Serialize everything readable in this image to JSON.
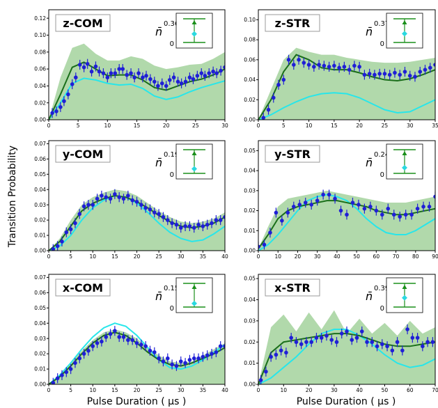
{
  "figure": {
    "ylabel": "Transition Probability",
    "xlabel": "Pulse Duration ( μs )",
    "colors": {
      "band": "#a8d5a2",
      "model": "#1a6e1a",
      "ideal": "#27e6ea",
      "points": "#1f1fd6",
      "marker_green": "#1a8f1a",
      "marker_cyan": "#2ad9e0"
    }
  },
  "chart_data": [
    {
      "type": "line",
      "title": "z-COM",
      "nbar": "0.36",
      "nbar_fraction": 0.36,
      "xlim": [
        0,
        30
      ],
      "ylim": [
        0,
        0.13
      ],
      "xticks": [
        "0",
        "5",
        "10",
        "15",
        "20",
        "25",
        "30"
      ],
      "yticks": [
        "0.00",
        "0.02",
        "0.04",
        "0.06",
        "0.08",
        "0.10",
        "0.12"
      ],
      "x": [
        0.6,
        1.3,
        2.0,
        2.6,
        3.3,
        4.0,
        4.6,
        5.3,
        6.0,
        6.6,
        7.3,
        8.0,
        8.6,
        9.3,
        10.0,
        10.6,
        11.3,
        12.0,
        12.6,
        13.3,
        14.0,
        14.6,
        15.3,
        16.0,
        16.6,
        17.3,
        18.0,
        18.6,
        19.3,
        20.0,
        20.6,
        21.3,
        22.0,
        22.6,
        23.3,
        24.0,
        24.6,
        25.3,
        26.0,
        26.6,
        27.3,
        28.0,
        28.6,
        29.3,
        30.0
      ],
      "y": [
        0.008,
        0.01,
        0.015,
        0.022,
        0.03,
        0.042,
        0.05,
        0.065,
        0.062,
        0.066,
        0.057,
        0.063,
        0.057,
        0.055,
        0.05,
        0.055,
        0.055,
        0.06,
        0.06,
        0.053,
        0.055,
        0.05,
        0.055,
        0.05,
        0.052,
        0.048,
        0.045,
        0.04,
        0.043,
        0.04,
        0.047,
        0.05,
        0.045,
        0.043,
        0.045,
        0.05,
        0.048,
        0.052,
        0.055,
        0.052,
        0.055,
        0.057,
        0.055,
        0.058,
        0.062
      ],
      "fit_x": [
        0,
        2,
        4,
        6,
        8,
        10,
        12,
        14,
        16,
        18,
        20,
        22,
        24,
        26,
        28,
        30
      ],
      "fit_y": [
        0.0,
        0.03,
        0.062,
        0.068,
        0.06,
        0.052,
        0.053,
        0.053,
        0.047,
        0.038,
        0.035,
        0.04,
        0.045,
        0.048,
        0.053,
        0.06
      ],
      "ideal_y": [
        0.0,
        0.02,
        0.043,
        0.049,
        0.047,
        0.043,
        0.041,
        0.042,
        0.037,
        0.028,
        0.024,
        0.027,
        0.033,
        0.038,
        0.042,
        0.046
      ],
      "band_y": [
        0.0,
        0.05,
        0.085,
        0.09,
        0.078,
        0.07,
        0.07,
        0.075,
        0.072,
        0.064,
        0.06,
        0.062,
        0.065,
        0.066,
        0.072,
        0.08
      ]
    },
    {
      "type": "line",
      "title": "z-STR",
      "nbar": "0.37",
      "nbar_fraction": 0.37,
      "xlim": [
        0,
        35
      ],
      "ylim": [
        0,
        0.11
      ],
      "xticks": [
        "0",
        "5",
        "10",
        "15",
        "20",
        "25",
        "30",
        "35"
      ],
      "yticks": [
        "0.00",
        "0.02",
        "0.04",
        "0.06",
        "0.08",
        "0.10"
      ],
      "x": [
        1,
        2,
        3,
        4,
        5,
        6,
        7,
        8,
        9,
        10,
        11,
        12,
        13,
        14,
        15,
        16,
        17,
        18,
        19,
        20,
        21,
        22,
        23,
        24,
        25,
        26,
        27,
        28,
        29,
        30,
        31,
        32,
        33,
        34,
        35
      ],
      "y": [
        0.002,
        0.01,
        0.022,
        0.035,
        0.04,
        0.06,
        0.055,
        0.06,
        0.057,
        0.055,
        0.053,
        0.055,
        0.054,
        0.053,
        0.054,
        0.052,
        0.053,
        0.05,
        0.054,
        0.053,
        0.045,
        0.046,
        0.045,
        0.046,
        0.046,
        0.045,
        0.047,
        0.045,
        0.048,
        0.044,
        0.043,
        0.048,
        0.05,
        0.052,
        0.055
      ],
      "fit_x": [
        0,
        2.5,
        5,
        7.5,
        10,
        12.5,
        15,
        17.5,
        20,
        22.5,
        25,
        27.5,
        30,
        32.5,
        35
      ],
      "fit_y": [
        0.0,
        0.02,
        0.048,
        0.065,
        0.06,
        0.052,
        0.05,
        0.05,
        0.047,
        0.043,
        0.04,
        0.039,
        0.041,
        0.045,
        0.05
      ],
      "ideal_y": [
        0.0,
        0.005,
        0.012,
        0.018,
        0.023,
        0.026,
        0.027,
        0.026,
        0.022,
        0.016,
        0.01,
        0.007,
        0.008,
        0.014,
        0.02
      ],
      "band_y": [
        0.0,
        0.03,
        0.06,
        0.072,
        0.068,
        0.065,
        0.065,
        0.062,
        0.06,
        0.058,
        0.057,
        0.057,
        0.058,
        0.06,
        0.062
      ]
    },
    {
      "type": "line",
      "title": "y-COM",
      "nbar": "0.19",
      "nbar_fraction": 0.19,
      "xlim": [
        0,
        40
      ],
      "ylim": [
        0,
        0.072
      ],
      "xticks": [
        "0",
        "5",
        "10",
        "15",
        "20",
        "25",
        "30",
        "35",
        "40"
      ],
      "yticks": [
        "0.00",
        "0.01",
        "0.02",
        "0.03",
        "0.04",
        "0.05",
        "0.06",
        "0.07"
      ],
      "x": [
        1,
        2,
        3,
        4,
        5,
        6,
        7,
        8,
        9,
        10,
        11,
        12,
        13,
        14,
        15,
        16,
        17,
        18,
        19,
        20,
        21,
        22,
        23,
        24,
        25,
        26,
        27,
        28,
        29,
        30,
        31,
        32,
        33,
        34,
        35,
        36,
        37,
        38,
        39,
        40
      ],
      "y": [
        0.001,
        0.003,
        0.006,
        0.012,
        0.014,
        0.018,
        0.024,
        0.029,
        0.03,
        0.03,
        0.034,
        0.036,
        0.035,
        0.034,
        0.037,
        0.035,
        0.034,
        0.036,
        0.033,
        0.032,
        0.03,
        0.028,
        0.027,
        0.025,
        0.024,
        0.022,
        0.02,
        0.018,
        0.017,
        0.015,
        0.016,
        0.016,
        0.015,
        0.017,
        0.016,
        0.017,
        0.018,
        0.02,
        0.02,
        0.022
      ],
      "fit_x": [
        0,
        2.5,
        5,
        7.5,
        10,
        12.5,
        15,
        17.5,
        20,
        22.5,
        25,
        27.5,
        30,
        32.5,
        35,
        37.5,
        40
      ],
      "fit_y": [
        0.0,
        0.006,
        0.016,
        0.026,
        0.031,
        0.034,
        0.036,
        0.035,
        0.032,
        0.028,
        0.023,
        0.019,
        0.016,
        0.015,
        0.016,
        0.018,
        0.022
      ],
      "ideal_y": [
        0.0,
        0.003,
        0.01,
        0.02,
        0.028,
        0.033,
        0.036,
        0.035,
        0.031,
        0.025,
        0.018,
        0.012,
        0.008,
        0.006,
        0.007,
        0.011,
        0.016
      ],
      "band_y": [
        0.0,
        0.008,
        0.02,
        0.03,
        0.035,
        0.038,
        0.04,
        0.039,
        0.036,
        0.031,
        0.026,
        0.022,
        0.019,
        0.018,
        0.019,
        0.021,
        0.025
      ]
    },
    {
      "type": "line",
      "title": "y-STR",
      "nbar": "0.24",
      "nbar_fraction": 0.24,
      "xlim": [
        0,
        90
      ],
      "ylim": [
        0,
        0.055
      ],
      "xticks": [
        "0",
        "10",
        "20",
        "30",
        "40",
        "50",
        "60",
        "70",
        "80",
        "90"
      ],
      "yticks": [
        "0.00",
        "0.01",
        "0.02",
        "0.03",
        "0.04",
        "0.05"
      ],
      "x": [
        0,
        3,
        6,
        9,
        12,
        15,
        18,
        21,
        24,
        27,
        30,
        33,
        36,
        39,
        42,
        45,
        48,
        51,
        54,
        57,
        60,
        63,
        66,
        69,
        72,
        75,
        78,
        81,
        84,
        87,
        90
      ],
      "y": [
        0.002,
        0.003,
        0.009,
        0.019,
        0.015,
        0.019,
        0.022,
        0.023,
        0.024,
        0.023,
        0.025,
        0.028,
        0.028,
        0.026,
        0.02,
        0.018,
        0.024,
        0.023,
        0.021,
        0.022,
        0.02,
        0.018,
        0.021,
        0.018,
        0.017,
        0.018,
        0.018,
        0.021,
        0.022,
        0.022,
        0.027
      ],
      "fit_x": [
        0,
        5,
        10,
        15,
        20,
        25,
        30,
        35,
        40,
        45,
        50,
        55,
        60,
        65,
        70,
        75,
        80,
        85,
        90
      ],
      "fit_y": [
        0.001,
        0.008,
        0.016,
        0.02,
        0.022,
        0.023,
        0.024,
        0.025,
        0.025,
        0.024,
        0.023,
        0.022,
        0.02,
        0.019,
        0.018,
        0.018,
        0.019,
        0.02,
        0.021
      ],
      "ideal_y": [
        0.0,
        0.003,
        0.008,
        0.014,
        0.02,
        0.025,
        0.027,
        0.028,
        0.027,
        0.025,
        0.021,
        0.016,
        0.012,
        0.009,
        0.008,
        0.008,
        0.01,
        0.013,
        0.016
      ],
      "band_y": [
        0.001,
        0.012,
        0.022,
        0.026,
        0.027,
        0.028,
        0.029,
        0.03,
        0.029,
        0.028,
        0.027,
        0.026,
        0.025,
        0.024,
        0.024,
        0.024,
        0.025,
        0.026,
        0.027
      ]
    },
    {
      "type": "line",
      "title": "x-COM",
      "nbar": "0.15",
      "nbar_fraction": 0.15,
      "xlim": [
        0,
        40
      ],
      "ylim": [
        0,
        0.072
      ],
      "xticks": [
        "0",
        "5",
        "10",
        "15",
        "20",
        "25",
        "30",
        "35",
        "40"
      ],
      "yticks": [
        "0.00",
        "0.01",
        "0.02",
        "0.03",
        "0.04",
        "0.05",
        "0.06",
        "0.07"
      ],
      "x": [
        1,
        2,
        3,
        4,
        5,
        6,
        7,
        8,
        9,
        10,
        11,
        12,
        13,
        14,
        15,
        16,
        17,
        18,
        19,
        20,
        21,
        22,
        23,
        24,
        25,
        26,
        27,
        28,
        29,
        30,
        31,
        32,
        33,
        34,
        35,
        36,
        37,
        38,
        39,
        40
      ],
      "y": [
        0.001,
        0.004,
        0.006,
        0.008,
        0.01,
        0.014,
        0.017,
        0.02,
        0.022,
        0.025,
        0.027,
        0.028,
        0.031,
        0.033,
        0.035,
        0.031,
        0.031,
        0.029,
        0.029,
        0.027,
        0.026,
        0.025,
        0.022,
        0.021,
        0.017,
        0.015,
        0.017,
        0.013,
        0.012,
        0.015,
        0.014,
        0.016,
        0.017,
        0.017,
        0.018,
        0.019,
        0.02,
        0.021,
        0.025,
        0.025
      ],
      "fit_x": [
        0,
        2.5,
        5,
        7.5,
        10,
        12.5,
        15,
        17.5,
        20,
        22.5,
        25,
        27.5,
        30,
        32.5,
        35,
        37.5,
        40
      ],
      "fit_y": [
        0.0,
        0.005,
        0.012,
        0.02,
        0.027,
        0.032,
        0.034,
        0.032,
        0.027,
        0.021,
        0.016,
        0.013,
        0.012,
        0.014,
        0.017,
        0.02,
        0.024
      ],
      "ideal_y": [
        0.0,
        0.006,
        0.014,
        0.023,
        0.031,
        0.037,
        0.04,
        0.038,
        0.032,
        0.024,
        0.016,
        0.011,
        0.01,
        0.012,
        0.016,
        0.021,
        0.026
      ],
      "band_y": [
        0.0,
        0.006,
        0.014,
        0.022,
        0.029,
        0.034,
        0.036,
        0.034,
        0.03,
        0.024,
        0.019,
        0.015,
        0.014,
        0.015,
        0.019,
        0.023,
        0.027
      ]
    },
    {
      "type": "line",
      "title": "x-STR",
      "nbar": "0.39",
      "nbar_fraction": 0.39,
      "xlim": [
        0,
        70
      ],
      "ylim": [
        0,
        0.052
      ],
      "xticks": [
        "0",
        "10",
        "20",
        "30",
        "40",
        "50",
        "60",
        "70"
      ],
      "yticks": [
        "0.00",
        "0.01",
        "0.02",
        "0.03",
        "0.04",
        "0.05"
      ],
      "x": [
        1,
        3,
        5,
        7,
        9,
        11,
        13,
        15,
        17,
        19,
        21,
        23,
        25,
        27,
        29,
        31,
        33,
        35,
        37,
        39,
        41,
        43,
        45,
        47,
        49,
        51,
        53,
        55,
        57,
        59,
        61,
        63,
        65,
        67,
        69
      ],
      "y": [
        0.002,
        0.006,
        0.013,
        0.014,
        0.016,
        0.015,
        0.022,
        0.02,
        0.019,
        0.02,
        0.02,
        0.022,
        0.022,
        0.023,
        0.021,
        0.02,
        0.024,
        0.025,
        0.021,
        0.022,
        0.025,
        0.02,
        0.02,
        0.018,
        0.019,
        0.018,
        0.016,
        0.02,
        0.016,
        0.026,
        0.022,
        0.022,
        0.018,
        0.02,
        0.02
      ],
      "fit_x": [
        0,
        5,
        10,
        15,
        20,
        25,
        30,
        35,
        40,
        45,
        50,
        55,
        60,
        65,
        70
      ],
      "fit_y": [
        0.0,
        0.015,
        0.02,
        0.021,
        0.022,
        0.023,
        0.024,
        0.024,
        0.023,
        0.021,
        0.019,
        0.018,
        0.018,
        0.019,
        0.02
      ],
      "ideal_y": [
        0.0,
        0.003,
        0.008,
        0.013,
        0.019,
        0.024,
        0.026,
        0.026,
        0.023,
        0.019,
        0.014,
        0.01,
        0.008,
        0.009,
        0.012
      ],
      "band_y": [
        0.0,
        0.027,
        0.033,
        0.025,
        0.034,
        0.026,
        0.035,
        0.024,
        0.031,
        0.024,
        0.029,
        0.023,
        0.03,
        0.024,
        0.027
      ]
    }
  ]
}
